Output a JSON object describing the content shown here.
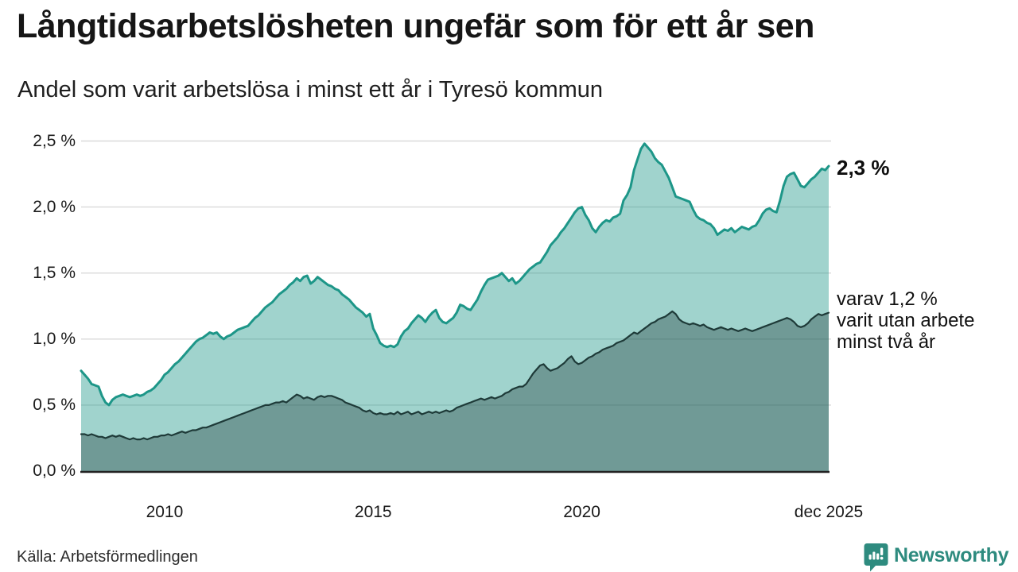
{
  "header": {
    "title": "Långtidsarbetslösheten ungefär som för ett år sen",
    "subtitle": "Andel som varit arbetslösa i minst ett år i Tyresö kommun"
  },
  "annotations": {
    "latest_value": "2,3 %",
    "secondary_line1": "varav 1,2 %",
    "secondary_line2": "varit utan arbete",
    "secondary_line3": "minst två år"
  },
  "footer": {
    "source": "Källa: Arbetsförmedlingen",
    "brand": "Newsworthy"
  },
  "colors": {
    "series1_line": "#1d9688",
    "series1_fill": "rgba(29,150,136,0.42)",
    "series2_line": "#1e3a38",
    "series2_fill": "rgba(30,58,56,0.37)",
    "gridline": "#d9d9d9",
    "baseline": "#222222",
    "brand_teal": "#2e8b7f"
  },
  "chart_data": {
    "type": "area",
    "title": "Långtidsarbetslösheten ungefär som för ett år sen",
    "subtitle": "Andel som varit arbetslösa i minst ett år i Tyresö kommun",
    "unit": "%",
    "x_start": "2008-01",
    "x_end": "2025-12",
    "x_step": "month",
    "ylim": [
      0,
      2.5
    ],
    "grid": "horizontal",
    "ytick_values": [
      2.5,
      2.0,
      1.5,
      1.0,
      0.5,
      0.0
    ],
    "ytick_labels": [
      "2,5 %",
      "2,0 %",
      "1,5 %",
      "1,0 %",
      "0,5 %",
      "0,0 %"
    ],
    "xtick_years": [
      2010.0,
      2015.0,
      2020.0,
      2025.917
    ],
    "xtick_labels": [
      "2010",
      "2015",
      "2020",
      "dec 2025"
    ],
    "series": [
      {
        "name": "Andel arbetslösa minst ett år",
        "end_label": "2,3 %",
        "values": [
          0.76,
          0.73,
          0.7,
          0.66,
          0.65,
          0.64,
          0.57,
          0.52,
          0.5,
          0.54,
          0.56,
          0.57,
          0.58,
          0.57,
          0.56,
          0.57,
          0.58,
          0.57,
          0.58,
          0.6,
          0.61,
          0.63,
          0.66,
          0.69,
          0.73,
          0.75,
          0.78,
          0.81,
          0.83,
          0.86,
          0.89,
          0.92,
          0.95,
          0.98,
          1.0,
          1.01,
          1.03,
          1.05,
          1.04,
          1.05,
          1.02,
          1.0,
          1.02,
          1.03,
          1.05,
          1.07,
          1.08,
          1.09,
          1.1,
          1.13,
          1.16,
          1.18,
          1.21,
          1.24,
          1.26,
          1.28,
          1.31,
          1.34,
          1.36,
          1.38,
          1.41,
          1.43,
          1.46,
          1.44,
          1.47,
          1.48,
          1.42,
          1.44,
          1.47,
          1.45,
          1.43,
          1.41,
          1.4,
          1.38,
          1.37,
          1.34,
          1.32,
          1.3,
          1.27,
          1.24,
          1.22,
          1.2,
          1.17,
          1.19,
          1.08,
          1.03,
          0.97,
          0.95,
          0.94,
          0.95,
          0.94,
          0.96,
          1.02,
          1.06,
          1.08,
          1.12,
          1.15,
          1.18,
          1.16,
          1.13,
          1.17,
          1.2,
          1.22,
          1.16,
          1.13,
          1.12,
          1.14,
          1.16,
          1.2,
          1.26,
          1.25,
          1.23,
          1.22,
          1.26,
          1.3,
          1.36,
          1.41,
          1.45,
          1.46,
          1.47,
          1.48,
          1.5,
          1.47,
          1.44,
          1.46,
          1.42,
          1.44,
          1.47,
          1.5,
          1.53,
          1.55,
          1.57,
          1.58,
          1.62,
          1.66,
          1.71,
          1.74,
          1.77,
          1.81,
          1.84,
          1.88,
          1.92,
          1.96,
          1.99,
          2.0,
          1.94,
          1.9,
          1.84,
          1.81,
          1.85,
          1.88,
          1.9,
          1.89,
          1.92,
          1.93,
          1.95,
          2.05,
          2.09,
          2.15,
          2.28,
          2.36,
          2.44,
          2.48,
          2.45,
          2.42,
          2.37,
          2.34,
          2.32,
          2.27,
          2.22,
          2.15,
          2.08,
          2.07,
          2.06,
          2.05,
          2.04,
          1.98,
          1.93,
          1.91,
          1.9,
          1.88,
          1.87,
          1.84,
          1.79,
          1.81,
          1.83,
          1.82,
          1.84,
          1.81,
          1.83,
          1.85,
          1.84,
          1.83,
          1.85,
          1.86,
          1.9,
          1.95,
          1.98,
          1.99,
          1.97,
          1.96,
          2.05,
          2.16,
          2.23,
          2.25,
          2.26,
          2.21,
          2.16,
          2.15,
          2.18,
          2.21,
          2.23,
          2.26,
          2.29,
          2.28,
          2.31
        ]
      },
      {
        "name": "varav utan arbete minst två år",
        "end_label": "1,2 %",
        "values": [
          0.28,
          0.28,
          0.27,
          0.28,
          0.27,
          0.26,
          0.26,
          0.25,
          0.26,
          0.27,
          0.26,
          0.27,
          0.26,
          0.25,
          0.24,
          0.25,
          0.24,
          0.24,
          0.25,
          0.24,
          0.25,
          0.26,
          0.26,
          0.27,
          0.27,
          0.28,
          0.27,
          0.28,
          0.29,
          0.3,
          0.29,
          0.3,
          0.31,
          0.31,
          0.32,
          0.33,
          0.33,
          0.34,
          0.35,
          0.36,
          0.37,
          0.38,
          0.39,
          0.4,
          0.41,
          0.42,
          0.43,
          0.44,
          0.45,
          0.46,
          0.47,
          0.48,
          0.49,
          0.5,
          0.5,
          0.51,
          0.52,
          0.52,
          0.53,
          0.52,
          0.54,
          0.56,
          0.58,
          0.57,
          0.55,
          0.56,
          0.55,
          0.54,
          0.56,
          0.57,
          0.56,
          0.57,
          0.57,
          0.56,
          0.55,
          0.54,
          0.52,
          0.51,
          0.5,
          0.49,
          0.48,
          0.46,
          0.45,
          0.46,
          0.44,
          0.43,
          0.44,
          0.43,
          0.43,
          0.44,
          0.43,
          0.45,
          0.43,
          0.44,
          0.45,
          0.43,
          0.44,
          0.45,
          0.43,
          0.44,
          0.45,
          0.44,
          0.45,
          0.44,
          0.45,
          0.46,
          0.45,
          0.46,
          0.48,
          0.49,
          0.5,
          0.51,
          0.52,
          0.53,
          0.54,
          0.55,
          0.54,
          0.55,
          0.56,
          0.55,
          0.56,
          0.57,
          0.59,
          0.6,
          0.62,
          0.63,
          0.64,
          0.64,
          0.66,
          0.7,
          0.74,
          0.77,
          0.8,
          0.81,
          0.78,
          0.76,
          0.77,
          0.78,
          0.8,
          0.82,
          0.85,
          0.87,
          0.83,
          0.81,
          0.82,
          0.84,
          0.86,
          0.87,
          0.89,
          0.9,
          0.92,
          0.93,
          0.94,
          0.95,
          0.97,
          0.98,
          0.99,
          1.01,
          1.03,
          1.05,
          1.04,
          1.06,
          1.08,
          1.1,
          1.12,
          1.13,
          1.15,
          1.16,
          1.17,
          1.19,
          1.21,
          1.19,
          1.15,
          1.13,
          1.12,
          1.11,
          1.12,
          1.11,
          1.1,
          1.11,
          1.09,
          1.08,
          1.07,
          1.08,
          1.09,
          1.08,
          1.07,
          1.08,
          1.07,
          1.06,
          1.07,
          1.08,
          1.07,
          1.06,
          1.07,
          1.08,
          1.09,
          1.1,
          1.11,
          1.12,
          1.13,
          1.14,
          1.15,
          1.16,
          1.15,
          1.13,
          1.1,
          1.09,
          1.1,
          1.12,
          1.15,
          1.17,
          1.19,
          1.18,
          1.19,
          1.2
        ]
      }
    ]
  }
}
